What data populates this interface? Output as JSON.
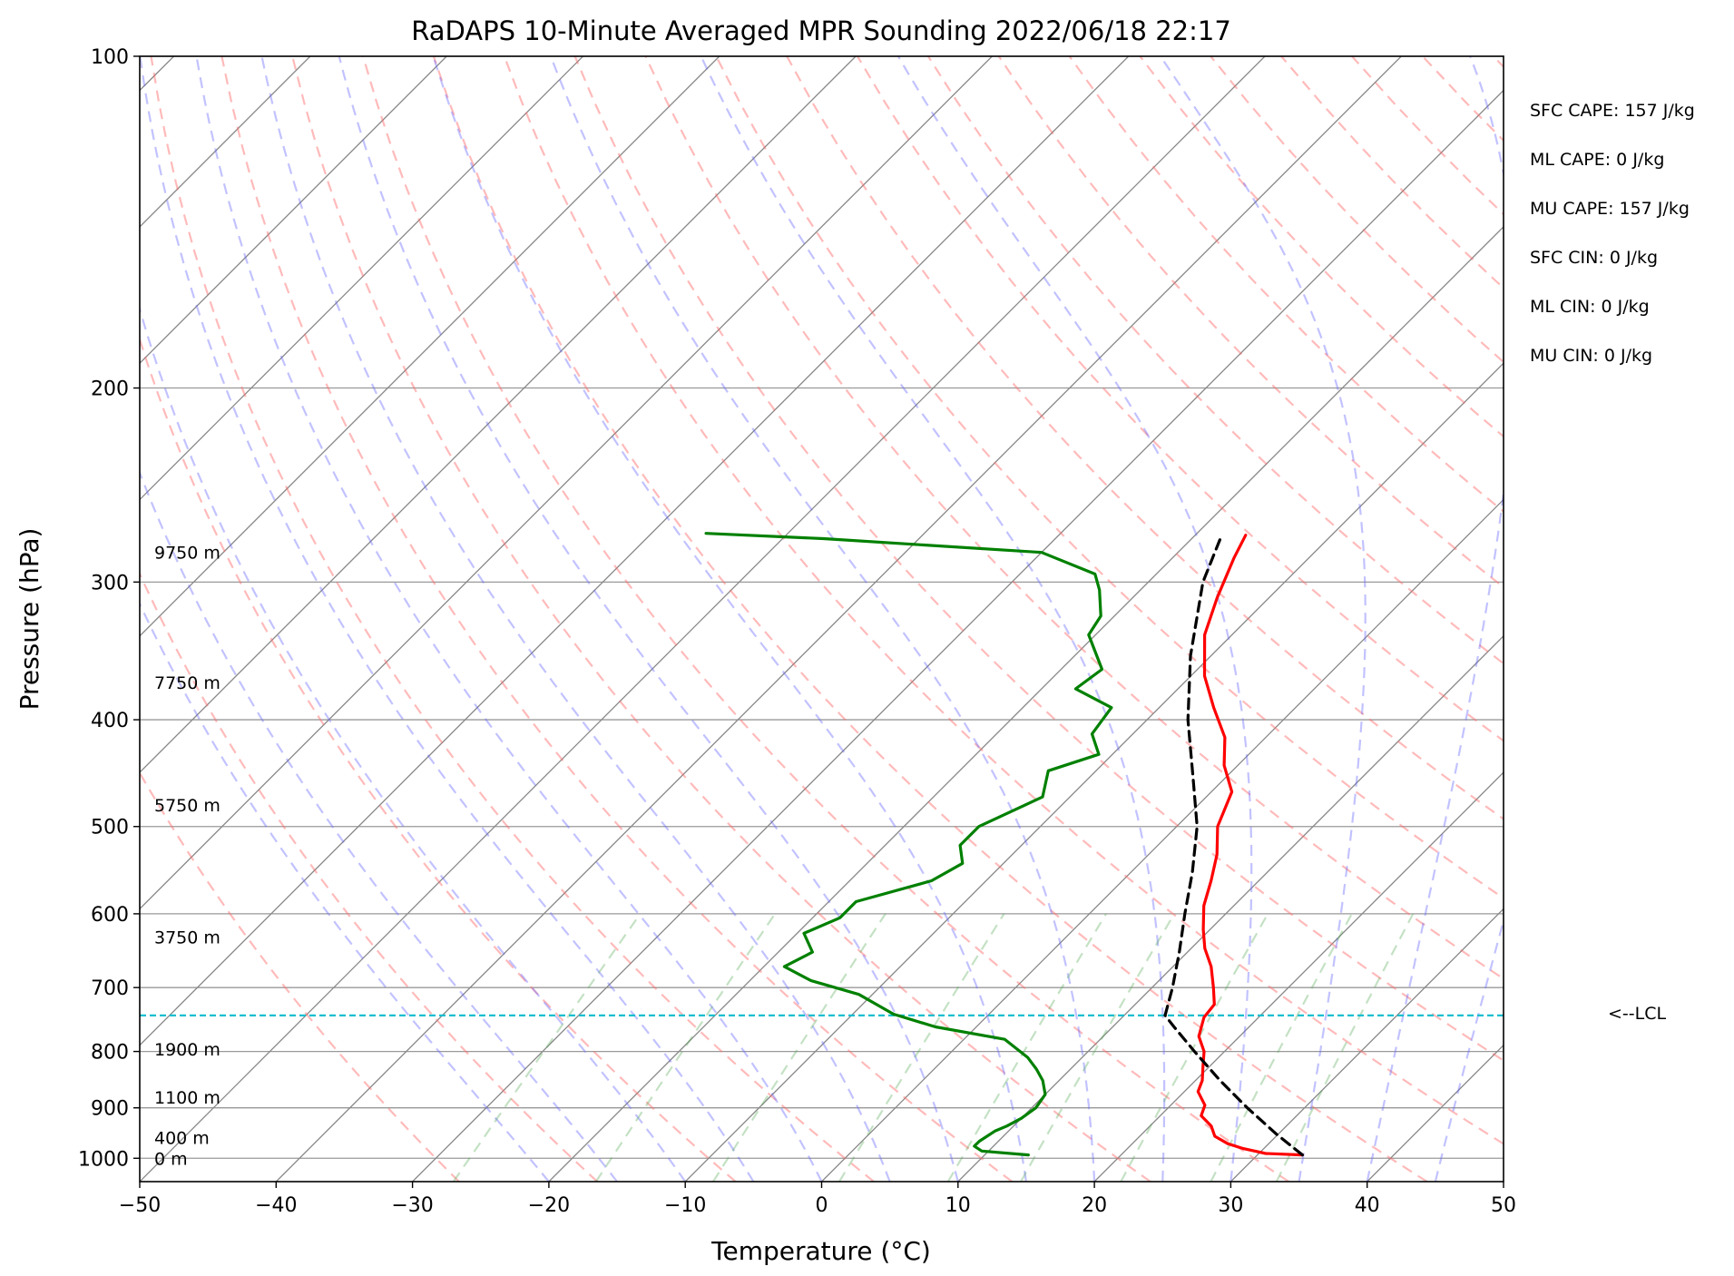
{
  "chart_data": {
    "type": "line",
    "title": "RaDAPS 10-Minute Averaged MPR Sounding 2022/06/18 22:17",
    "xlabel": "Temperature (°C)",
    "ylabel": "Pressure (hPa)",
    "xlim": [
      -50,
      50
    ],
    "ylim": [
      1050,
      100
    ],
    "y_scale": "log",
    "skew": "skew-T",
    "grid": true,
    "x_ticks": [
      -50,
      -40,
      -30,
      -20,
      -10,
      0,
      10,
      20,
      30,
      40,
      50
    ],
    "x_tick_labels": [
      "−50",
      "−40",
      "−30",
      "−20",
      "−10",
      "0",
      "10",
      "20",
      "30",
      "40",
      "50"
    ],
    "y_ticks": [
      100,
      200,
      300,
      400,
      500,
      600,
      700,
      800,
      900,
      1000
    ],
    "y_tick_labels": [
      "100",
      "200",
      "300",
      "400",
      "500",
      "600",
      "700",
      "800",
      "900",
      "1000"
    ],
    "height_labels": [
      {
        "text": "9750 m",
        "p": 282
      },
      {
        "text": "7750 m",
        "p": 370
      },
      {
        "text": "5750 m",
        "p": 478
      },
      {
        "text": "3750 m",
        "p": 630
      },
      {
        "text": "1900 m",
        "p": 796
      },
      {
        "text": "1100 m",
        "p": 880
      },
      {
        "text": "400 m",
        "p": 958
      },
      {
        "text": "0 m",
        "p": 1000
      }
    ],
    "series": [
      {
        "key": "temperature",
        "color": "#ff0000",
        "points": [
          [
            993,
            33.3
          ],
          [
            990,
            30.5
          ],
          [
            980,
            28.5
          ],
          [
            970,
            27.0
          ],
          [
            955,
            25.5
          ],
          [
            935,
            24.5
          ],
          [
            915,
            23.0
          ],
          [
            895,
            22.5
          ],
          [
            870,
            21.0
          ],
          [
            850,
            20.5
          ],
          [
            825,
            19.5
          ],
          [
            800,
            18.5
          ],
          [
            775,
            17.0
          ],
          [
            745,
            16.0
          ],
          [
            725,
            15.8
          ],
          [
            700,
            14.5
          ],
          [
            670,
            12.8
          ],
          [
            645,
            11.0
          ],
          [
            620,
            9.5
          ],
          [
            590,
            7.8
          ],
          [
            560,
            6.5
          ],
          [
            530,
            5.0
          ],
          [
            500,
            3.0
          ],
          [
            465,
            1.5
          ],
          [
            440,
            -1.0
          ],
          [
            415,
            -3.0
          ],
          [
            390,
            -6.0
          ],
          [
            365,
            -9.0
          ],
          [
            335,
            -12.0
          ],
          [
            310,
            -13.8
          ],
          [
            285,
            -15.5
          ],
          [
            272,
            -16.3
          ]
        ]
      },
      {
        "key": "dewpoint",
        "color": "#008000",
        "points": [
          [
            993,
            13.2
          ],
          [
            985,
            9.5
          ],
          [
            975,
            8.6
          ],
          [
            965,
            8.6
          ],
          [
            955,
            8.8
          ],
          [
            945,
            9.0
          ],
          [
            935,
            9.5
          ],
          [
            920,
            10.0
          ],
          [
            900,
            10.3
          ],
          [
            875,
            10.0
          ],
          [
            850,
            8.8
          ],
          [
            830,
            7.5
          ],
          [
            810,
            6.0
          ],
          [
            780,
            3.0
          ],
          [
            760,
            -3.0
          ],
          [
            740,
            -7.0
          ],
          [
            710,
            -11.0
          ],
          [
            690,
            -15.5
          ],
          [
            670,
            -18.5
          ],
          [
            650,
            -17.5
          ],
          [
            625,
            -19.5
          ],
          [
            605,
            -18.0
          ],
          [
            585,
            -18.0
          ],
          [
            560,
            -14.0
          ],
          [
            540,
            -13.0
          ],
          [
            520,
            -14.5
          ],
          [
            500,
            -14.5
          ],
          [
            470,
            -12.0
          ],
          [
            445,
            -13.5
          ],
          [
            430,
            -11.0
          ],
          [
            412,
            -13.0
          ],
          [
            390,
            -13.5
          ],
          [
            375,
            -17.5
          ],
          [
            360,
            -17.0
          ],
          [
            335,
            -20.5
          ],
          [
            322,
            -21.0
          ],
          [
            305,
            -23.0
          ],
          [
            295,
            -24.5
          ],
          [
            282,
            -30.0
          ],
          [
            274,
            -47.0
          ],
          [
            271,
            -56.0
          ]
        ]
      },
      {
        "key": "parcel",
        "color": "#000000",
        "dashed": true,
        "points": [
          [
            993,
            33.3
          ],
          [
            950,
            29.8
          ],
          [
            900,
            25.8
          ],
          [
            850,
            21.8
          ],
          [
            800,
            17.8
          ],
          [
            760,
            14.5
          ],
          [
            742,
            13.0
          ],
          [
            700,
            11.5
          ],
          [
            650,
            9.4
          ],
          [
            600,
            7.0
          ],
          [
            550,
            4.5
          ],
          [
            500,
            1.5
          ],
          [
            450,
            -2.5
          ],
          [
            400,
            -7.0
          ],
          [
            350,
            -11.5
          ],
          [
            300,
            -16.0
          ],
          [
            274,
            -17.9
          ]
        ]
      }
    ],
    "lcl": {
      "p": 742,
      "label": "<--LCL",
      "color": "#17becf"
    },
    "reference_lines": {
      "dry_adiabats_color": "#ff6666",
      "moist_adiabats_color": "#6666ff",
      "mixing_ratio_color": "#55aa55",
      "isotherm_color": "#888888"
    }
  },
  "indices": [
    "SFC CAPE: 157 J/kg",
    "ML CAPE: 0 J/kg",
    "MU CAPE: 157 J/kg",
    "SFC CIN: 0 J/kg",
    "ML CIN: 0 J/kg",
    "MU CIN: 0 J/kg"
  ]
}
